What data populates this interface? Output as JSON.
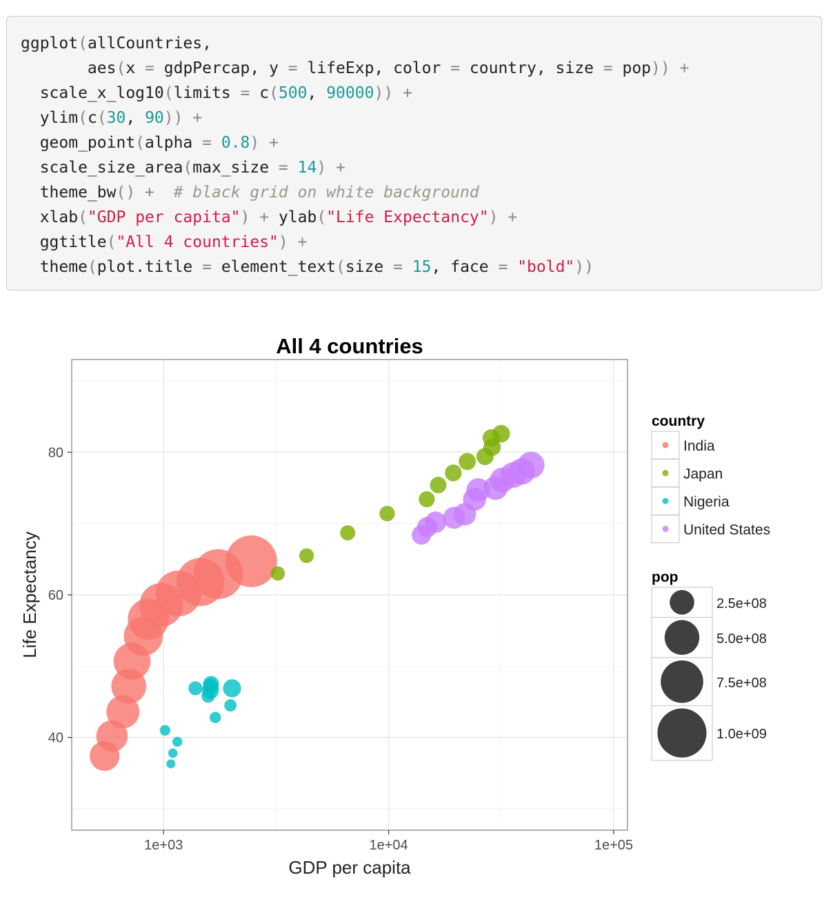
{
  "code": {
    "lines": [
      [
        {
          "t": "ggplot",
          "k": "f"
        },
        {
          "t": "(",
          "k": "p"
        },
        {
          "t": "allCountries,",
          "k": "f"
        }
      ],
      [
        {
          "t": "       aes",
          "k": "f"
        },
        {
          "t": "(",
          "k": "p"
        },
        {
          "t": "x ",
          "k": "f"
        },
        {
          "t": "=",
          "k": "p"
        },
        {
          "t": " gdpPercap, y ",
          "k": "f"
        },
        {
          "t": "=",
          "k": "p"
        },
        {
          "t": " lifeExp, color ",
          "k": "f"
        },
        {
          "t": "=",
          "k": "p"
        },
        {
          "t": " country, size ",
          "k": "f"
        },
        {
          "t": "=",
          "k": "p"
        },
        {
          "t": " pop",
          "k": "f"
        },
        {
          "t": "))",
          "k": "p"
        },
        {
          "t": " ",
          "k": "f"
        },
        {
          "t": "+",
          "k": "p"
        }
      ],
      [
        {
          "t": "  scale_x_log10",
          "k": "f"
        },
        {
          "t": "(",
          "k": "p"
        },
        {
          "t": "limits ",
          "k": "f"
        },
        {
          "t": "=",
          "k": "p"
        },
        {
          "t": " c",
          "k": "f"
        },
        {
          "t": "(",
          "k": "p"
        },
        {
          "t": "500",
          "k": "n"
        },
        {
          "t": ", ",
          "k": "f"
        },
        {
          "t": "90000",
          "k": "n"
        },
        {
          "t": "))",
          "k": "p"
        },
        {
          "t": " ",
          "k": "f"
        },
        {
          "t": "+",
          "k": "p"
        }
      ],
      [
        {
          "t": "  ylim",
          "k": "f"
        },
        {
          "t": "(",
          "k": "p"
        },
        {
          "t": "c",
          "k": "f"
        },
        {
          "t": "(",
          "k": "p"
        },
        {
          "t": "30",
          "k": "n"
        },
        {
          "t": ", ",
          "k": "f"
        },
        {
          "t": "90",
          "k": "n"
        },
        {
          "t": "))",
          "k": "p"
        },
        {
          "t": " ",
          "k": "f"
        },
        {
          "t": "+",
          "k": "p"
        }
      ],
      [
        {
          "t": "  geom_point",
          "k": "f"
        },
        {
          "t": "(",
          "k": "p"
        },
        {
          "t": "alpha ",
          "k": "f"
        },
        {
          "t": "=",
          "k": "p"
        },
        {
          "t": " ",
          "k": "f"
        },
        {
          "t": "0.8",
          "k": "n"
        },
        {
          "t": ")",
          "k": "p"
        },
        {
          "t": " ",
          "k": "f"
        },
        {
          "t": "+",
          "k": "p"
        }
      ],
      [
        {
          "t": "  scale_size_area",
          "k": "f"
        },
        {
          "t": "(",
          "k": "p"
        },
        {
          "t": "max_size ",
          "k": "f"
        },
        {
          "t": "=",
          "k": "p"
        },
        {
          "t": " ",
          "k": "f"
        },
        {
          "t": "14",
          "k": "n"
        },
        {
          "t": ")",
          "k": "p"
        },
        {
          "t": " ",
          "k": "f"
        },
        {
          "t": "+",
          "k": "p"
        }
      ],
      [
        {
          "t": "  theme_bw",
          "k": "f"
        },
        {
          "t": "()",
          "k": "p"
        },
        {
          "t": " ",
          "k": "f"
        },
        {
          "t": "+",
          "k": "p"
        },
        {
          "t": "  ",
          "k": "f"
        },
        {
          "t": "# black grid on white background",
          "k": "c"
        }
      ],
      [
        {
          "t": "  xlab",
          "k": "f"
        },
        {
          "t": "(",
          "k": "p"
        },
        {
          "t": "\"GDP per capita\"",
          "k": "s"
        },
        {
          "t": ")",
          "k": "p"
        },
        {
          "t": " ",
          "k": "f"
        },
        {
          "t": "+",
          "k": "p"
        },
        {
          "t": " ylab",
          "k": "f"
        },
        {
          "t": "(",
          "k": "p"
        },
        {
          "t": "\"Life Expectancy\"",
          "k": "s"
        },
        {
          "t": ")",
          "k": "p"
        },
        {
          "t": " ",
          "k": "f"
        },
        {
          "t": "+",
          "k": "p"
        }
      ],
      [
        {
          "t": "  ggtitle",
          "k": "f"
        },
        {
          "t": "(",
          "k": "p"
        },
        {
          "t": "\"All 4 countries\"",
          "k": "s"
        },
        {
          "t": ")",
          "k": "p"
        },
        {
          "t": " ",
          "k": "f"
        },
        {
          "t": "+",
          "k": "p"
        }
      ],
      [
        {
          "t": "  theme",
          "k": "f"
        },
        {
          "t": "(",
          "k": "p"
        },
        {
          "t": "plot.title ",
          "k": "f"
        },
        {
          "t": "=",
          "k": "p"
        },
        {
          "t": " element_text",
          "k": "f"
        },
        {
          "t": "(",
          "k": "p"
        },
        {
          "t": "size ",
          "k": "f"
        },
        {
          "t": "=",
          "k": "p"
        },
        {
          "t": " ",
          "k": "f"
        },
        {
          "t": "15",
          "k": "n"
        },
        {
          "t": ", face ",
          "k": "f"
        },
        {
          "t": "=",
          "k": "p"
        },
        {
          "t": " ",
          "k": "f"
        },
        {
          "t": "\"bold\"",
          "k": "s"
        },
        {
          "t": "))",
          "k": "p"
        }
      ]
    ],
    "colors": {
      "number": "#1a9b97",
      "string": "#d11e48",
      "comment": "#999988"
    }
  },
  "chart_data": {
    "type": "scatter",
    "title": "All 4 countries",
    "xlabel": "GDP per capita",
    "ylabel": "Life Expectancy",
    "x_scale": "log10",
    "xlim": [
      500,
      90000
    ],
    "ylim": [
      30,
      90
    ],
    "x_ticks": [
      1000,
      10000,
      100000
    ],
    "x_tick_labels": [
      "1e+03",
      "1e+04",
      "1e+05"
    ],
    "y_ticks": [
      40,
      60,
      80
    ],
    "y_tick_labels": [
      "40",
      "60",
      "80"
    ],
    "grid": true,
    "legend_position": "right",
    "color_legend_title": "country",
    "size_legend_title": "pop",
    "size_legend": [
      {
        "value": 250000000,
        "label": "2.5e+08"
      },
      {
        "value": 500000000,
        "label": "5.0e+08"
      },
      {
        "value": 750000000,
        "label": "7.5e+08"
      },
      {
        "value": 1000000000,
        "label": "1.0e+09"
      }
    ],
    "series": [
      {
        "name": "India",
        "color": "#f8766d",
        "points": [
          {
            "x": 547,
            "y": 37.4,
            "pop": 372000000
          },
          {
            "x": 590,
            "y": 40.2,
            "pop": 409000000
          },
          {
            "x": 660,
            "y": 43.6,
            "pop": 454000000
          },
          {
            "x": 700,
            "y": 47.2,
            "pop": 506000000
          },
          {
            "x": 724,
            "y": 50.7,
            "pop": 567000000
          },
          {
            "x": 813,
            "y": 54.2,
            "pop": 634000000
          },
          {
            "x": 856,
            "y": 56.6,
            "pop": 708000000
          },
          {
            "x": 977,
            "y": 58.6,
            "pop": 788000000
          },
          {
            "x": 1164,
            "y": 60.2,
            "pop": 872000000
          },
          {
            "x": 1459,
            "y": 61.8,
            "pop": 959000000
          },
          {
            "x": 1747,
            "y": 62.9,
            "pop": 1034000000
          },
          {
            "x": 2452,
            "y": 64.7,
            "pop": 1110000000
          }
        ]
      },
      {
        "name": "Japan",
        "color": "#7cae00",
        "points": [
          {
            "x": 3217,
            "y": 63.0,
            "pop": 86000000
          },
          {
            "x": 4318,
            "y": 65.5,
            "pop": 91000000
          },
          {
            "x": 6577,
            "y": 68.7,
            "pop": 95000000
          },
          {
            "x": 9847,
            "y": 71.4,
            "pop": 99000000
          },
          {
            "x": 14779,
            "y": 73.4,
            "pop": 107000000
          },
          {
            "x": 16610,
            "y": 75.4,
            "pop": 113000000
          },
          {
            "x": 19384,
            "y": 77.1,
            "pop": 118000000
          },
          {
            "x": 22376,
            "y": 78.7,
            "pop": 122000000
          },
          {
            "x": 26825,
            "y": 79.4,
            "pop": 124000000
          },
          {
            "x": 28817,
            "y": 80.7,
            "pop": 125000000
          },
          {
            "x": 28605,
            "y": 82.0,
            "pop": 127000000
          },
          {
            "x": 31656,
            "y": 82.6,
            "pop": 127500000
          }
        ]
      },
      {
        "name": "Nigeria",
        "color": "#00bfc4",
        "points": [
          {
            "x": 1077,
            "y": 36.3,
            "pop": 33000000
          },
          {
            "x": 1100,
            "y": 37.8,
            "pop": 37000000
          },
          {
            "x": 1151,
            "y": 39.4,
            "pop": 41000000
          },
          {
            "x": 1015,
            "y": 41.0,
            "pop": 47000000
          },
          {
            "x": 1698,
            "y": 42.8,
            "pop": 53000000
          },
          {
            "x": 1982,
            "y": 44.5,
            "pop": 62000000
          },
          {
            "x": 1577,
            "y": 45.8,
            "pop": 73000000
          },
          {
            "x": 1385,
            "y": 46.9,
            "pop": 81000000
          },
          {
            "x": 1619,
            "y": 47.2,
            "pop": 93000000
          },
          {
            "x": 1625,
            "y": 47.5,
            "pop": 106000000
          },
          {
            "x": 1615,
            "y": 46.6,
            "pop": 119000000
          },
          {
            "x": 2014,
            "y": 46.9,
            "pop": 135000000
          }
        ]
      },
      {
        "name": "United States",
        "color": "#c77cff",
        "points": [
          {
            "x": 13990,
            "y": 68.4,
            "pop": 158000000
          },
          {
            "x": 14847,
            "y": 69.5,
            "pop": 171000000
          },
          {
            "x": 16173,
            "y": 70.2,
            "pop": 186000000
          },
          {
            "x": 19530,
            "y": 70.8,
            "pop": 199000000
          },
          {
            "x": 21806,
            "y": 71.3,
            "pop": 210000000
          },
          {
            "x": 24072,
            "y": 73.4,
            "pop": 220000000
          },
          {
            "x": 25009,
            "y": 74.7,
            "pop": 232000000
          },
          {
            "x": 29884,
            "y": 75.0,
            "pop": 243000000
          },
          {
            "x": 32004,
            "y": 76.1,
            "pop": 256000000
          },
          {
            "x": 35767,
            "y": 76.8,
            "pop": 272000000
          },
          {
            "x": 39097,
            "y": 77.3,
            "pop": 287000000
          },
          {
            "x": 42952,
            "y": 78.2,
            "pop": 301000000
          }
        ]
      }
    ]
  }
}
